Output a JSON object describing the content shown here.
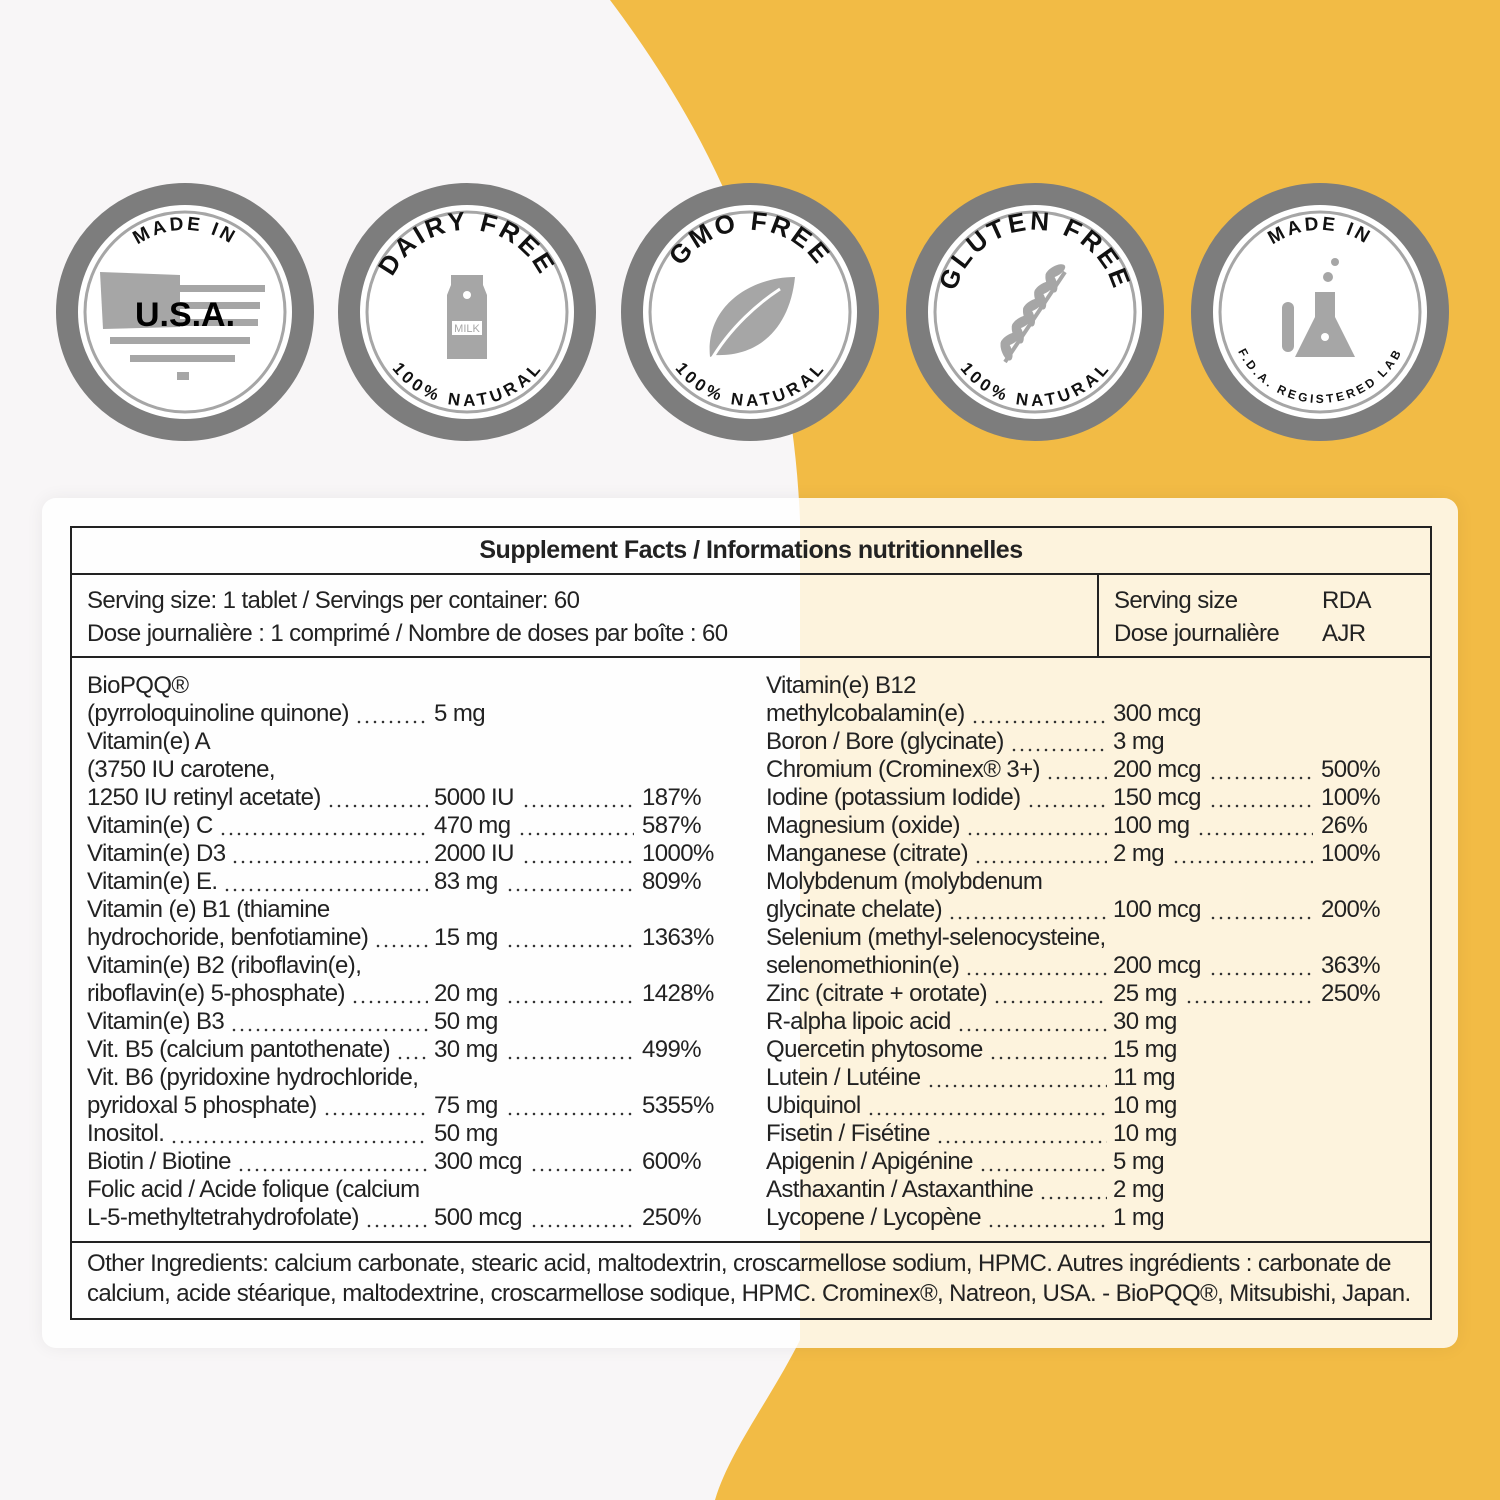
{
  "colors": {
    "accent": "#f2bb45",
    "background": "#f8f6f7",
    "badge_ring": "#7d7d7d",
    "badge_icon": "#a6a6a6"
  },
  "badges": [
    {
      "top": "MADE IN",
      "center": "U.S.A.",
      "bottom": "",
      "icon": "usa-flag-map-icon"
    },
    {
      "top": "DAIRY FREE",
      "center": "MILK",
      "bottom": "100% NATURAL",
      "icon": "milk-carton-icon"
    },
    {
      "top": "GMO FREE",
      "center": "",
      "bottom": "100% NATURAL",
      "icon": "leaf-icon"
    },
    {
      "top": "GLUTEN FREE",
      "center": "",
      "bottom": "100% NATURAL",
      "icon": "wheat-icon"
    },
    {
      "top": "MADE IN",
      "center": "",
      "bottom": "F.D.A. REGISTERED LAB",
      "icon": "lab-flask-icon"
    }
  ],
  "facts": {
    "title": "Supplement Facts / Informations nutritionnelles",
    "serving_line1": "Serving size: 1 tablet / Servings per container: 60",
    "serving_line2": "Dose journalière : 1 comprimé / Nombre de doses par boîte : 60",
    "col_serving_en": "Serving size",
    "col_rda_en": "RDA",
    "col_serving_fr": "Dose journalière",
    "col_rda_fr": "AJR",
    "left": [
      {
        "name": "BioPQQ®"
      },
      {
        "name": "(pyrroloquinoline quinone)",
        "qty": "5 mg"
      },
      {
        "name": "Vitamin(e) A"
      },
      {
        "name": "(3750 IU carotene,"
      },
      {
        "name": "1250 IU retinyl acetate)",
        "qty": "5000 IU",
        "pct": "187%"
      },
      {
        "name": "Vitamin(e) C",
        "qty": "470 mg",
        "pct": "587%"
      },
      {
        "name": "Vitamin(e) D3",
        "qty": "2000 IU",
        "pct": "1000%"
      },
      {
        "name": "Vitamin(e) E.",
        "qty": "83 mg",
        "pct": "809%"
      },
      {
        "name": "Vitamin (e) B1 (thiamine"
      },
      {
        "name": "hydrochoride, benfotiamine)",
        "qty": "15 mg",
        "pct": "1363%"
      },
      {
        "name": "Vitamin(e) B2 (riboflavin(e),"
      },
      {
        "name": "riboflavin(e) 5-phosphate)",
        "qty": "20 mg",
        "pct": "1428%"
      },
      {
        "name": "Vitamin(e) B3",
        "qty": "50 mg"
      },
      {
        "name": "Vit. B5 (calcium pantothenate)",
        "qty": "30 mg",
        "pct": "499%"
      },
      {
        "name": "Vit. B6 (pyridoxine hydrochloride,"
      },
      {
        "name": "pyridoxal 5 phosphate)",
        "qty": "75 mg",
        "pct": "5355%"
      },
      {
        "name": "Inositol.",
        "qty": "50 mg"
      },
      {
        "name": "Biotin / Biotine",
        "qty": "300 mcg",
        "pct": "600%"
      },
      {
        "name": "Folic acid / Acide folique (calcium"
      },
      {
        "name": "L-5-methyltetrahydrofolate)",
        "qty": "500 mcg",
        "pct": "250%"
      }
    ],
    "right": [
      {
        "name": "Vitamin(e) B12"
      },
      {
        "name": "methylcobalamin(e)",
        "qty": "300 mcg"
      },
      {
        "name": "Boron / Bore (glycinate)",
        "qty": "3 mg"
      },
      {
        "name": "Chromium (Crominex® 3+)",
        "qty": "200 mcg",
        "pct": "500%"
      },
      {
        "name": "Iodine (potassium Iodide)",
        "qty": "150 mcg",
        "pct": "100%"
      },
      {
        "name": "Magnesium (oxide)",
        "qty": "100 mg",
        "pct": "26%"
      },
      {
        "name": "Manganese (citrate)",
        "qty": "2 mg",
        "pct": "100%"
      },
      {
        "name": "Molybdenum (molybdenum"
      },
      {
        "name": "glycinate chelate)",
        "qty": "100 mcg",
        "pct": "200%"
      },
      {
        "name": "Selenium (methyl-selenocysteine,"
      },
      {
        "name": "selenomethionin(e)",
        "qty": "200 mcg",
        "pct": "363%"
      },
      {
        "name": "Zinc (citrate + orotate)",
        "qty": "25 mg",
        "pct": "250%"
      },
      {
        "name": "R-alpha lipoic acid",
        "qty": "30 mg"
      },
      {
        "name": "Quercetin phytosome",
        "qty": "15 mg"
      },
      {
        "name": "Lutein / Lutéine",
        "qty": "11 mg"
      },
      {
        "name": "Ubiquinol",
        "qty": "10 mg"
      },
      {
        "name": "Fisetin / Fisétine",
        "qty": "10 mg"
      },
      {
        "name": "Apigenin / Apigénine",
        "qty": "5 mg"
      },
      {
        "name": "Asthaxantin / Astaxanthine",
        "qty": "2 mg"
      },
      {
        "name": "Lycopene / Lycopène",
        "qty": "1 mg"
      }
    ],
    "other_ingredients_1": "Other Ingredients: calcium carbonate, stearic acid, maltodextrin, croscarmellose sodium, HPMC. Autres ingrédients : carbonate de",
    "other_ingredients_2": "calcium, acide stéarique, maltodextrine, croscarmellose sodique, HPMC. Crominex®, Natreon, USA. - BioPQQ®, Mitsubishi, Japan."
  }
}
